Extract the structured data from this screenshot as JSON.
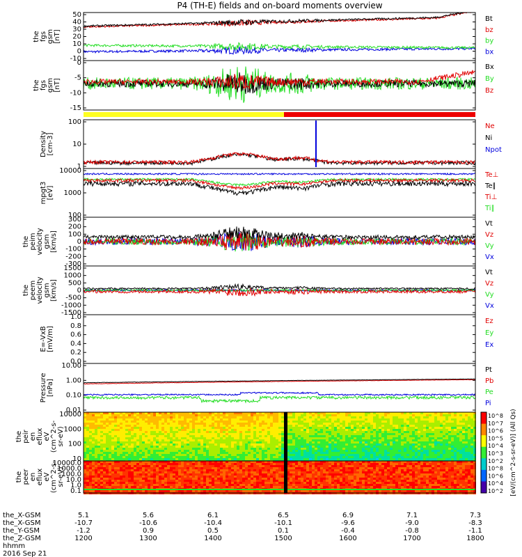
{
  "title": "P4 (TH-E) fields and on-board moments overview",
  "colors": {
    "black": "#000000",
    "red": "#e00000",
    "green": "#22dd22",
    "blue": "#0000dd",
    "yellow": "#ffff22",
    "frame": "#000000"
  },
  "panels": [
    {
      "id": "fgs-gsm",
      "ylabel": [
        "the",
        "fgs",
        "gsm",
        "[nT]"
      ],
      "ticks": [
        "50",
        "40",
        "30",
        "20",
        "10",
        "0",
        "-10"
      ],
      "ylim": [
        -10,
        50
      ],
      "legend": [
        {
          "label": "Bt",
          "color": "black"
        },
        {
          "label": "bz",
          "color": "red"
        },
        {
          "label": "by",
          "color": "green"
        },
        {
          "label": "bx",
          "color": "blue"
        }
      ]
    },
    {
      "id": "fgs-dsl",
      "ylabel": [
        "the",
        "fgs",
        "gsm",
        "[nT]"
      ],
      "ticks": [
        "0",
        "-5",
        "-10",
        "-15"
      ],
      "ylim": [
        -18,
        10
      ],
      "legend": [
        {
          "label": "Bx",
          "color": "black"
        },
        {
          "label": "By",
          "color": "green"
        },
        {
          "label": "Bz",
          "color": "red"
        }
      ]
    },
    {
      "id": "density",
      "ylabel": [
        "Density",
        "[cm-3]"
      ],
      "ticks": [
        "100",
        "10",
        "1"
      ],
      "ylim": [
        0.5,
        200
      ],
      "legend": [
        {
          "label": "Ne",
          "color": "red"
        },
        {
          "label": "Ni",
          "color": "black"
        },
        {
          "label": "Npot",
          "color": "blue"
        }
      ]
    },
    {
      "id": "temperature",
      "ylabel": [
        "mpgt3",
        "[eV]"
      ],
      "ticks": [
        "10000",
        "1000",
        "100"
      ],
      "ylim": [
        20,
        10000
      ],
      "legend": [
        {
          "label": "Te⊥",
          "color": "red"
        },
        {
          "label": "Te∥",
          "color": "black"
        },
        {
          "label": "Ti⊥",
          "color": "red"
        },
        {
          "label": "Ti∥",
          "color": "green"
        }
      ]
    },
    {
      "id": "peim-velocity",
      "ylabel": [
        "the",
        "peim",
        "velocity",
        "gsm",
        "[km/s]"
      ],
      "ticks": [
        "300",
        "200",
        "100",
        "0",
        "-100",
        "-200",
        "-300"
      ],
      "ylim": [
        -300,
        300
      ],
      "legend": [
        {
          "label": "Vt",
          "color": "black"
        },
        {
          "label": "Vz",
          "color": "red"
        },
        {
          "label": "Vy",
          "color": "green"
        },
        {
          "label": "Vx",
          "color": "blue"
        }
      ]
    },
    {
      "id": "peem-velocity",
      "ylabel": [
        "the",
        "peem",
        "velocity",
        "gsm",
        "[km/s]"
      ],
      "ticks": [
        "1500",
        "1000",
        "500",
        "0",
        "-500",
        "-1000",
        "-1500"
      ],
      "ylim": [
        -1500,
        1500
      ],
      "legend": [
        {
          "label": "Vt",
          "color": "black"
        },
        {
          "label": "Vz",
          "color": "red"
        },
        {
          "label": "Vy",
          "color": "green"
        },
        {
          "label": "Vx",
          "color": "blue"
        }
      ]
    },
    {
      "id": "exb",
      "ylabel": [
        "E=-VxB",
        "[mV/m]"
      ],
      "ticks": [
        "1.0",
        "0.8",
        "0.6",
        "0.4",
        "0.2",
        "0.0"
      ],
      "ylim": [
        0,
        1
      ],
      "legend": [
        {
          "label": "Ez",
          "color": "red"
        },
        {
          "label": "Ey",
          "color": "green"
        },
        {
          "label": "Ex",
          "color": "blue"
        }
      ]
    },
    {
      "id": "pressure",
      "ylabel": [
        "Pressure",
        "[nPa]"
      ],
      "ticks": [
        "10.00",
        "1.00",
        "0.10",
        "0.01"
      ],
      "ylim": [
        0.01,
        10
      ],
      "legend": [
        {
          "label": "Pt",
          "color": "black"
        },
        {
          "label": "Pb",
          "color": "red"
        },
        {
          "label": "Pe",
          "color": "green"
        },
        {
          "label": "Pi",
          "color": "blue"
        }
      ]
    },
    {
      "id": "peir-spectrogram",
      "ylabel": [
        "the",
        "peir",
        "en",
        "eflux",
        "eV",
        "(cm^2-s-",
        "sr-eV)"
      ],
      "ticks": [
        "10000",
        "1000",
        "100",
        "10"
      ]
    },
    {
      "id": "peer-spectrogram",
      "ylabel": [
        "the",
        "peer",
        "en",
        "eflux",
        "eV",
        "(cm^2-s-",
        "sr-eV)"
      ],
      "ticks": [
        "10000.0",
        "1000.0",
        "100.0",
        "10.0",
        "1.0",
        "0.1"
      ]
    }
  ],
  "colorbar": {
    "label": "[eV/(cm^2-s-sr-eV)]  (All Qs)",
    "ticks_top": [
      "10^8",
      "10^7",
      "10^6",
      "10^5",
      "10^4",
      "10^3",
      "10^2"
    ],
    "ticks_bottom": [
      "10^8",
      "10^6",
      "10^4",
      "10^2"
    ]
  },
  "xaxis": {
    "rows": [
      {
        "label": "the_X-GSM",
        "values": [
          "5.1",
          "5.6",
          "6.1",
          "6.5",
          "6.9",
          "7.1",
          "7.3"
        ]
      },
      {
        "label": "the_X-GSM",
        "values": [
          "-10.7",
          "-10.6",
          "-10.4",
          "-10.1",
          "-9.6",
          "-9.0",
          "-8.3"
        ]
      },
      {
        "label": "the_Y-GSM",
        "values": [
          "-1.2",
          "0.9",
          "0.5",
          "0.1",
          "-0.4",
          "-0.8",
          "-1.1"
        ]
      },
      {
        "label": "the_Z-GSM",
        "values": [
          "1200",
          "1300",
          "1400",
          "1500",
          "1600",
          "1700",
          "1800"
        ]
      },
      {
        "label": "hhmm",
        "values": []
      }
    ],
    "date": "2016 Sep 21",
    "time_hours": [
      12,
      13,
      14,
      15,
      16,
      17,
      18
    ]
  },
  "chart_data": {
    "type": "line",
    "title": "P4 (TH-E) fields and on-board moments overview",
    "x_label": "hhmm",
    "x": [
      "1200",
      "1300",
      "1400",
      "1500",
      "1600",
      "1700",
      "1800"
    ],
    "series": [
      {
        "name": "Bt",
        "values": [
          33,
          36,
          39,
          40,
          42,
          44,
          45
        ]
      },
      {
        "name": "bz",
        "values": [
          31,
          35,
          38,
          39,
          41,
          43,
          44
        ]
      },
      {
        "name": "by",
        "values": [
          10,
          8,
          6,
          7,
          6,
          5,
          8
        ]
      },
      {
        "name": "bx",
        "values": [
          1,
          1,
          2,
          5,
          6,
          5,
          4
        ]
      },
      {
        "name": "Ne",
        "values": [
          0.5,
          0.5,
          2,
          1,
          0.6,
          0.5,
          0.5
        ]
      },
      {
        "name": "Pt",
        "values": [
          0.6,
          0.7,
          0.8,
          0.8,
          0.9,
          0.9,
          1.0
        ]
      },
      {
        "name": "Pb",
        "values": [
          0.5,
          0.6,
          0.7,
          0.7,
          0.8,
          0.9,
          1.0
        ]
      },
      {
        "name": "Pe",
        "values": [
          0.08,
          0.06,
          0.05,
          0.05,
          0.05,
          0.05,
          0.06
        ]
      },
      {
        "name": "Pi",
        "values": [
          0.1,
          0.1,
          0.12,
          0.15,
          0.12,
          0.1,
          0.1
        ]
      }
    ]
  }
}
